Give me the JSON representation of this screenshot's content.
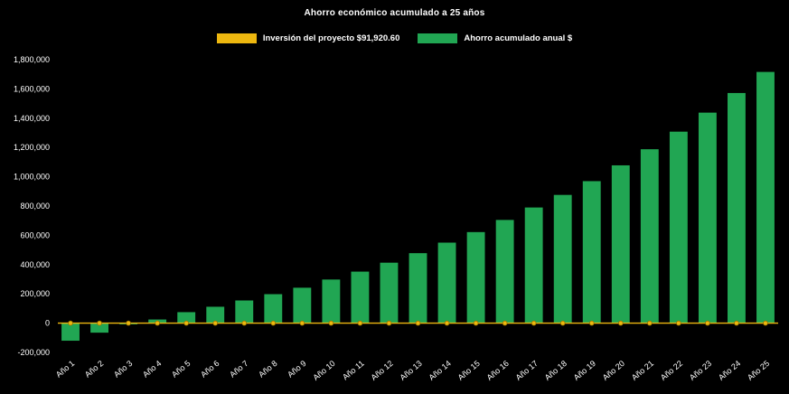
{
  "title": "Ahorro económico acumulado a 25 años",
  "legend": [
    {
      "label": "Inversión del proyecto $91,920.60",
      "color": "#EDB70F"
    },
    {
      "label": "Ahorro acumulado anual $",
      "color": "#21A653"
    }
  ],
  "chart_data": {
    "type": "bar",
    "title": "Ahorro económico acumulado a 25 años",
    "background": "#000000",
    "text_color": "#FFFFFF",
    "grid": false,
    "legend_position": "top",
    "ylim": [
      -200000,
      1800000
    ],
    "ytick_step": 200000,
    "categories": [
      "Año 1",
      "Año 2",
      "Año 3",
      "Año 4",
      "Año 5",
      "Año 6",
      "Año 7",
      "Año 8",
      "Año 9",
      "Año 10",
      "Año 11",
      "Año 12",
      "Año 13",
      "Año 14",
      "Año 15",
      "Año 16",
      "Año 17",
      "Año 18",
      "Año 19",
      "Año 20",
      "Año 21",
      "Año 22",
      "Año 23",
      "Año 24",
      "Año 25"
    ],
    "series": [
      {
        "name": "Inversión del proyecto $91,920.60",
        "type": "line",
        "color": "#EDB70F",
        "marker_color": "#EDB70F",
        "marker_stroke": "#9A7400",
        "constant_value": 0
      },
      {
        "name": "Ahorro acumulado anual $",
        "type": "bar",
        "color": "#21A653",
        "values": [
          -120000,
          -65000,
          -8000,
          25000,
          75000,
          112000,
          155000,
          198000,
          242000,
          298000,
          352000,
          413000,
          478000,
          550000,
          622000,
          705000,
          790000,
          876000,
          970000,
          1078000,
          1188000,
          1308000,
          1438000,
          1572000,
          1716000
        ]
      }
    ]
  }
}
